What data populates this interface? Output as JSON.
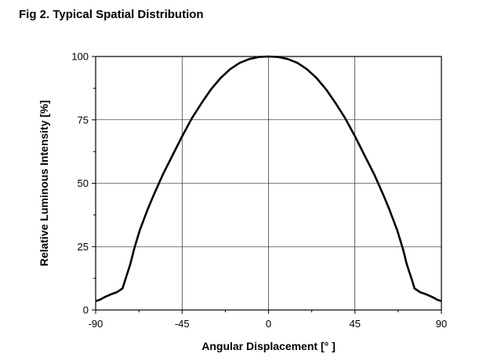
{
  "figure": {
    "title": "Fig 2. Typical Spatial Distribution"
  },
  "chart_data": {
    "type": "line",
    "title": "Fig 2. Typical Spatial Distribution",
    "xlabel": "Angular Displacement [° ]",
    "ylabel": "Relative Luminous Intensity [%]",
    "xlim": [
      -90,
      90
    ],
    "ylim": [
      0,
      100
    ],
    "xticks": [
      -90,
      -45,
      0,
      45,
      90
    ],
    "yticks": [
      0,
      25,
      50,
      75,
      100
    ],
    "xtick_labels": [
      "-90",
      "-45",
      "0",
      "45",
      "90"
    ],
    "ytick_labels": [
      "0",
      "25",
      "50",
      "75",
      "100"
    ],
    "grid": true,
    "series": [
      {
        "x": [
          -90,
          -88,
          -85,
          -82,
          -79,
          -76,
          -75,
          -72,
          -70,
          -67,
          -63,
          -60,
          -55,
          -50,
          -45,
          -40,
          -35,
          -30,
          -25,
          -20,
          -15,
          -10,
          -5,
          0,
          5,
          10,
          15,
          20,
          25,
          30,
          35,
          40,
          45,
          50,
          55,
          60,
          63,
          67,
          70,
          72,
          75,
          76,
          79,
          82,
          85,
          88,
          90
        ],
        "y": [
          3.5,
          4.0,
          5.2,
          6.2,
          7.0,
          8.5,
          11,
          18,
          24,
          31.5,
          39.5,
          45,
          53.5,
          61,
          68.5,
          75.5,
          81.5,
          87,
          91.5,
          95,
          97.5,
          99,
          99.8,
          100,
          99.8,
          99,
          97.5,
          95,
          91.5,
          87,
          81.5,
          75.5,
          68.5,
          61,
          53.5,
          45,
          39.5,
          31.5,
          24,
          18,
          11,
          8.5,
          7.0,
          6.2,
          5.2,
          4.0,
          3.5
        ]
      }
    ]
  }
}
